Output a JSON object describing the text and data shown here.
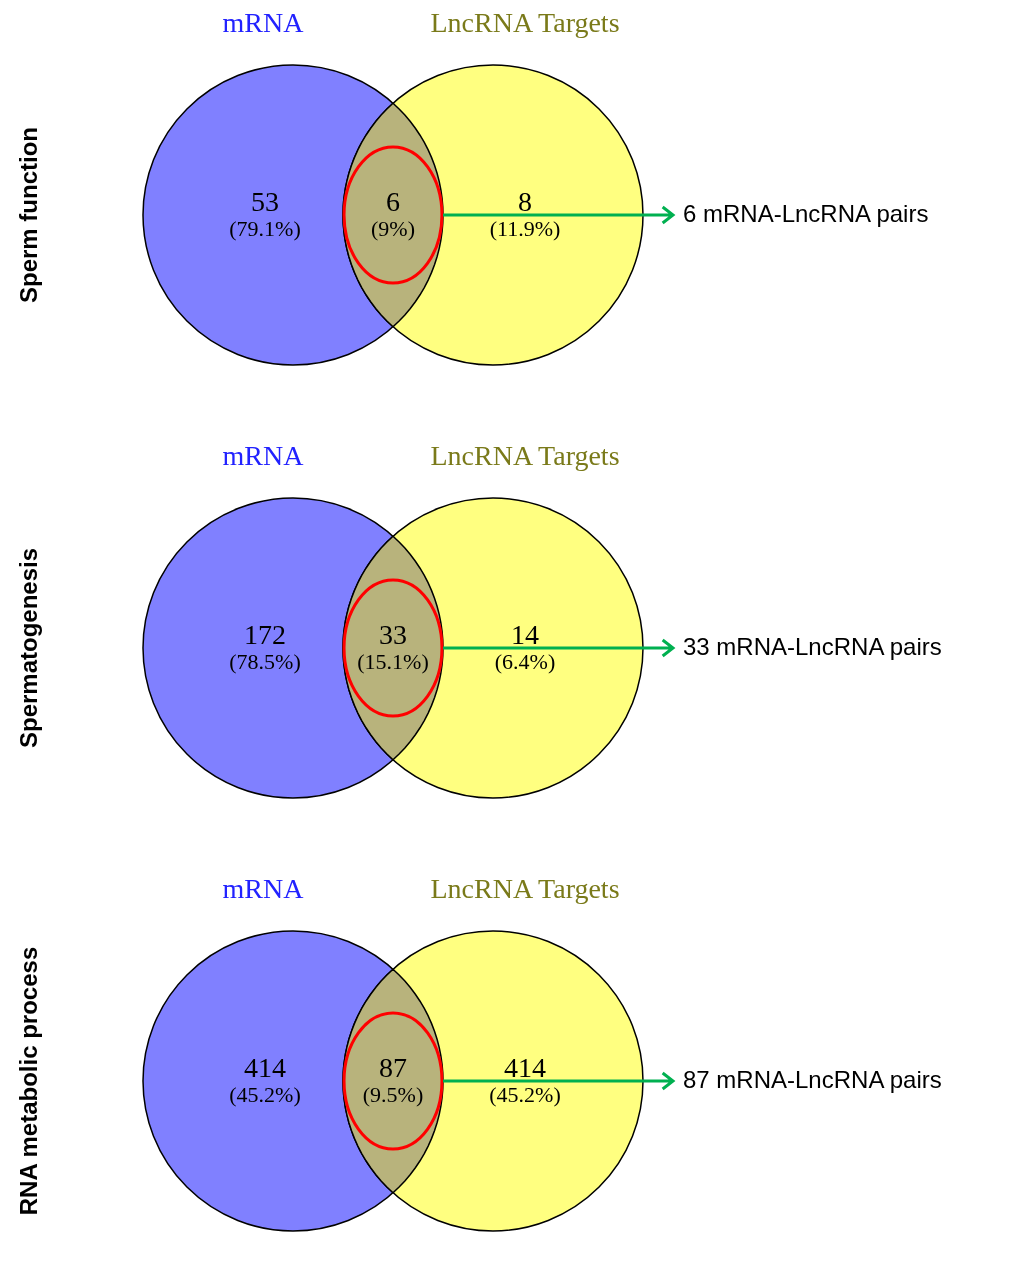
{
  "chart_data": [
    {
      "type": "other",
      "ylabel": "Sperm function",
      "categories": [
        null,
        null,
        null
      ],
      "values": [
        53,
        6,
        8
      ],
      "colors": [
        "#8080ff",
        "#b8b37c",
        "#ffff80"
      ],
      "data_labels": true,
      "annotations": [
        "mRNA",
        "LncRNA Targets",
        "(79.1%)",
        "(9%)",
        "(11.9%)",
        "6 mRNA-LncRNA pairs"
      ]
    },
    {
      "type": "other",
      "ylabel": "Spermatogenesis",
      "categories": [
        null,
        null,
        null
      ],
      "values": [
        172,
        33,
        14
      ],
      "colors": [
        "#8080ff",
        "#b8b37c",
        "#ffff80"
      ],
      "data_labels": true,
      "annotations": [
        "mRNA",
        "LncRNA Targets",
        "(78.5%)",
        "(15.1%)",
        "(6.4%)",
        "33 mRNA-LncRNA pairs"
      ]
    },
    {
      "type": "other",
      "ylabel": "RNA metabolic process",
      "categories": [
        null,
        null,
        null
      ],
      "values": [
        414,
        87,
        414
      ],
      "colors": [
        "#8080ff",
        "#b8b37c",
        "#ffff80"
      ],
      "data_labels": true,
      "annotations": [
        "mRNA",
        "LncRNA Targets",
        "(45.2%)",
        "(9.5%)",
        "(45.2%)",
        "87 mRNA-LncRNA pairs"
      ]
    }
  ]
}
